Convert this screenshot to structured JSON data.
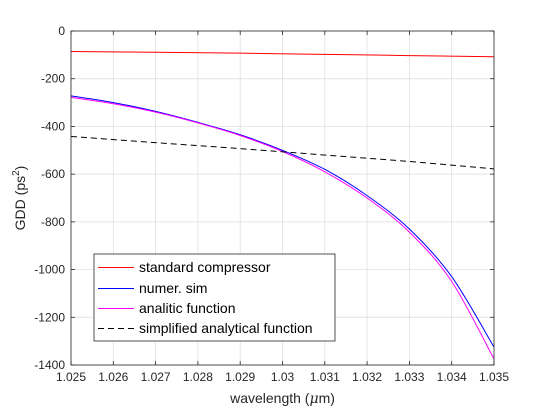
{
  "chart_data": {
    "type": "line",
    "title": "",
    "xlabel_parts": [
      "wavelength (",
      "μ",
      "m)"
    ],
    "ylabel_parts": [
      "GDD (ps",
      "2",
      ")"
    ],
    "xlim": [
      1.025,
      1.035
    ],
    "ylim": [
      -1400,
      0
    ],
    "xticks": [
      1.025,
      1.026,
      1.027,
      1.028,
      1.029,
      1.03,
      1.031,
      1.032,
      1.033,
      1.034,
      1.035
    ],
    "xtick_labels": [
      "1.025",
      "1.026",
      "1.027",
      "1.028",
      "1.029",
      "1.03",
      "1.031",
      "1.032",
      "1.033",
      "1.034",
      "1.035"
    ],
    "yticks": [
      0,
      -200,
      -400,
      -600,
      -800,
      -1000,
      -1200,
      -1400
    ],
    "ytick_labels": [
      "0",
      "-200",
      "-400",
      "-600",
      "-800",
      "-1000",
      "-1200",
      "-1400"
    ],
    "grid": true,
    "legend_position": "bottom-left",
    "series": [
      {
        "name": "standard compressor",
        "color": "#ff0000",
        "dash": "solid",
        "x": [
          1.025,
          1.027,
          1.029,
          1.031,
          1.033,
          1.035
        ],
        "y": [
          -86,
          -89,
          -93,
          -98,
          -103,
          -108
        ]
      },
      {
        "name": "numer. sim",
        "color": "#0000ff",
        "dash": "solid",
        "x": [
          1.025,
          1.026,
          1.027,
          1.028,
          1.029,
          1.03,
          1.031,
          1.032,
          1.033,
          1.034,
          1.035
        ],
        "y": [
          -272,
          -300,
          -337,
          -383,
          -435,
          -500,
          -580,
          -690,
          -830,
          -1030,
          -1325
        ]
      },
      {
        "name": "analitic function",
        "color": "#ff00ff",
        "dash": "solid",
        "x": [
          1.025,
          1.026,
          1.027,
          1.028,
          1.029,
          1.03,
          1.031,
          1.032,
          1.033,
          1.034,
          1.035
        ],
        "y": [
          -278,
          -305,
          -340,
          -385,
          -438,
          -505,
          -590,
          -700,
          -843,
          -1050,
          -1375
        ]
      },
      {
        "name": "simplified analytical function",
        "color": "#000000",
        "dash": "dashed",
        "x": [
          1.025,
          1.027,
          1.029,
          1.031,
          1.033,
          1.035
        ],
        "y": [
          -442,
          -468,
          -493,
          -520,
          -547,
          -578
        ]
      }
    ]
  }
}
